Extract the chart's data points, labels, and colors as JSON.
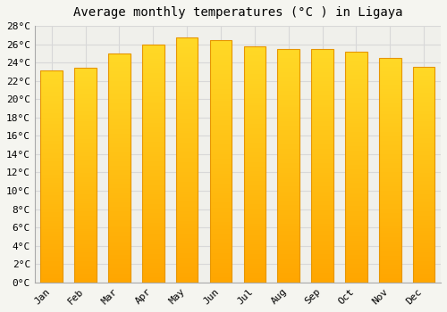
{
  "title": "Average monthly temperatures (°C ) in Ligaya",
  "months": [
    "Jan",
    "Feb",
    "Mar",
    "Apr",
    "May",
    "Jun",
    "Jul",
    "Aug",
    "Sep",
    "Oct",
    "Nov",
    "Dec"
  ],
  "temperatures": [
    23.1,
    23.4,
    25.0,
    26.0,
    26.7,
    26.4,
    25.8,
    25.5,
    25.5,
    25.2,
    24.5,
    23.5
  ],
  "bar_color_top": "#FFB300",
  "bar_color_bottom": "#FFA000",
  "bar_edge_color": "#E69500",
  "ylim": [
    0,
    28
  ],
  "ytick_step": 2,
  "background_color": "#f5f5f0",
  "plot_bg_color": "#f0f0eb",
  "grid_color": "#d8d8d8",
  "title_fontsize": 10,
  "tick_fontsize": 8,
  "font_family": "monospace"
}
